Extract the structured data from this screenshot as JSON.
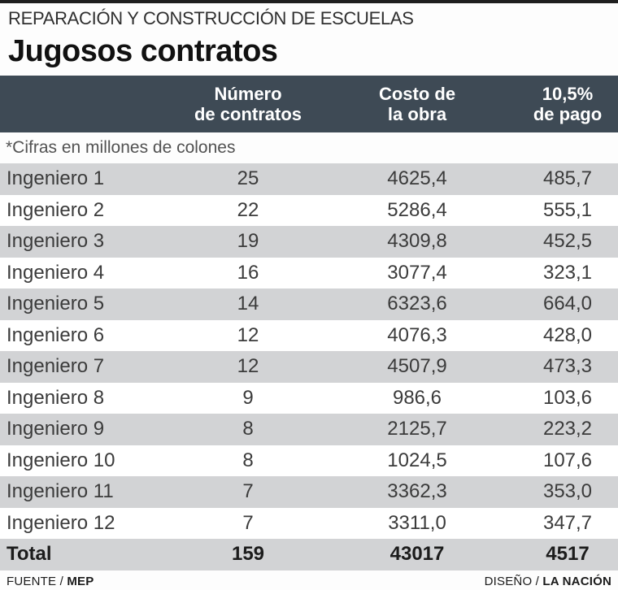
{
  "header": {
    "kicker": "REPARACIÓN Y CONSTRUCCIÓN DE ESCUELAS",
    "title": "Jugosos contratos"
  },
  "table": {
    "columns": {
      "contracts": {
        "line1": "Número",
        "line2": "de contratos"
      },
      "cost": {
        "line1": "Costo de",
        "line2": "la obra"
      },
      "payment": {
        "line1": "10,5%",
        "line2": "de pago"
      }
    },
    "note": "*Cifras en millones de colones",
    "rows": [
      {
        "label": "Ingeniero 1",
        "contracts": "25",
        "cost": "4625,4",
        "payment": "485,7"
      },
      {
        "label": "Ingeniero 2",
        "contracts": "22",
        "cost": "5286,4",
        "payment": "555,1"
      },
      {
        "label": "Ingeniero 3",
        "contracts": "19",
        "cost": "4309,8",
        "payment": "452,5"
      },
      {
        "label": "Ingeniero 4",
        "contracts": "16",
        "cost": "3077,4",
        "payment": "323,1"
      },
      {
        "label": "Ingeniero 5",
        "contracts": "14",
        "cost": "6323,6",
        "payment": "664,0"
      },
      {
        "label": "Ingeniero 6",
        "contracts": "12",
        "cost": "4076,3",
        "payment": "428,0"
      },
      {
        "label": "Ingeniero 7",
        "contracts": "12",
        "cost": "4507,9",
        "payment": "473,3"
      },
      {
        "label": "Ingeniero 8",
        "contracts": "9",
        "cost": "986,6",
        "payment": "103,6"
      },
      {
        "label": "Ingeniero 9",
        "contracts": "8",
        "cost": "2125,7",
        "payment": "223,2"
      },
      {
        "label": "Ingeniero 10",
        "contracts": "8",
        "cost": "1024,5",
        "payment": "107,6"
      },
      {
        "label": "Ingeniero 11",
        "contracts": "7",
        "cost": "3362,3",
        "payment": "353,0"
      },
      {
        "label": "Ingeniero 12",
        "contracts": "7",
        "cost": "3311,0",
        "payment": "347,7"
      }
    ],
    "total": {
      "label": "Total",
      "contracts": "159",
      "cost": "43017",
      "payment": "4517"
    }
  },
  "footer": {
    "source_label": "FUENTE / ",
    "source_value": "MEP",
    "design_label": "DISEÑO / ",
    "design_value": "LA NACIÓN"
  },
  "colors": {
    "header_bar": "#3e4a55",
    "row_stripe": "#d2d3d5",
    "top_bar": "#1f1f1f",
    "background": "#fdfdfd"
  },
  "chart_data": {
    "type": "table",
    "title": "Jugosos contratos",
    "subtitle": "REPARACIÓN Y CONSTRUCCIÓN DE ESCUELAS",
    "units_note": "Cifras en millones de colones",
    "columns": [
      "Ingeniero",
      "Número de contratos",
      "Costo de la obra",
      "10,5% de pago"
    ],
    "rows": [
      [
        "Ingeniero 1",
        25,
        4625.4,
        485.7
      ],
      [
        "Ingeniero 2",
        22,
        5286.4,
        555.1
      ],
      [
        "Ingeniero 3",
        19,
        4309.8,
        452.5
      ],
      [
        "Ingeniero 4",
        16,
        3077.4,
        323.1
      ],
      [
        "Ingeniero 5",
        14,
        6323.6,
        664.0
      ],
      [
        "Ingeniero 6",
        12,
        4076.3,
        428.0
      ],
      [
        "Ingeniero 7",
        12,
        4507.9,
        473.3
      ],
      [
        "Ingeniero 8",
        9,
        986.6,
        103.6
      ],
      [
        "Ingeniero 9",
        8,
        2125.7,
        223.2
      ],
      [
        "Ingeniero 10",
        8,
        1024.5,
        107.6
      ],
      [
        "Ingeniero 11",
        7,
        3362.3,
        353.0
      ],
      [
        "Ingeniero 12",
        7,
        3311.0,
        347.7
      ]
    ],
    "total": [
      "Total",
      159,
      43017,
      4517
    ],
    "source": "MEP",
    "design": "LA NACIÓN"
  }
}
